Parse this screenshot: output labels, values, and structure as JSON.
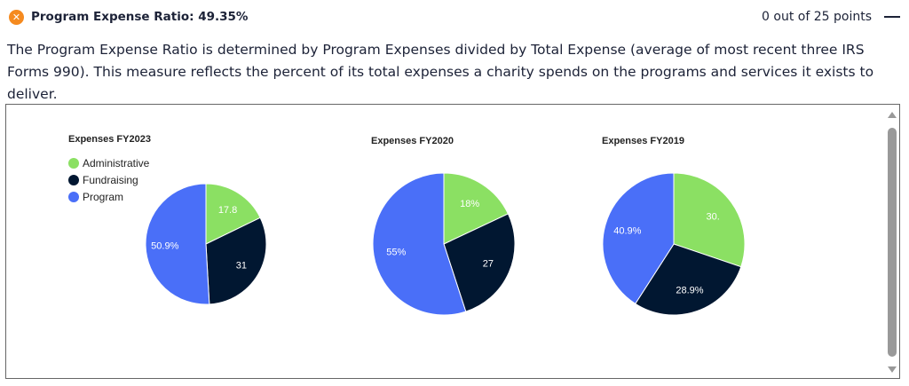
{
  "header": {
    "icon": "x-circle-icon",
    "title": "Program Expense Ratio: 49.35%",
    "points": "0 out of 25 points",
    "collapse_icon": "minus-icon"
  },
  "description": "The Program Expense Ratio is determined by Program Expenses divided by Total Expense (average of most recent three IRS Forms 990). This measure reflects the percent of its total expenses a charity spends on the programs and services it exists to deliver.",
  "colors": {
    "Administrative": "#8be063",
    "Fundraising": "#011731",
    "Program": "#4a6ff8",
    "accent": "#f58a1f"
  },
  "chart_data": [
    {
      "type": "pie",
      "title": "Expenses FY2023",
      "legend": [
        "Administrative",
        "Fundraising",
        "Program"
      ],
      "legend_position": "top-left",
      "categories": [
        "Administrative",
        "Fundraising",
        "Program"
      ],
      "values": [
        17.8,
        31.3,
        50.9
      ],
      "labels": [
        "17.8",
        "31",
        "50.9%"
      ]
    },
    {
      "type": "pie",
      "title": "Expenses FY2020",
      "categories": [
        "Administrative",
        "Fundraising",
        "Program"
      ],
      "values": [
        18,
        27,
        55
      ],
      "labels": [
        "18%",
        "27",
        "55%"
      ]
    },
    {
      "type": "pie",
      "title": "Expenses FY2019",
      "categories": [
        "Administrative",
        "Fundraising",
        "Program"
      ],
      "values": [
        30.2,
        28.9,
        40.9
      ],
      "labels": [
        "30.",
        "28.9%",
        "40.9%"
      ]
    }
  ]
}
